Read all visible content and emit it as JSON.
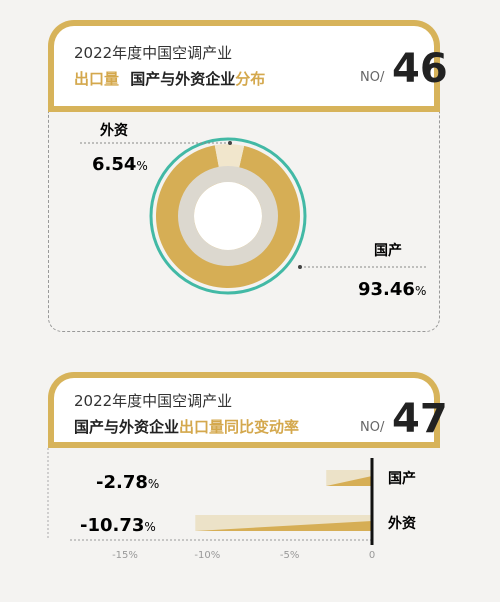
{
  "chart_data": [
    {
      "type": "pie",
      "number": "46",
      "no_label": "NO/",
      "title_line1": "2022年度中国空调产业",
      "title_line2": {
        "part1": "出口量",
        "part2": "国产与外资企业",
        "part3": "分布"
      },
      "categories": [
        "国产",
        "外资"
      ],
      "values": [
        93.46,
        6.54
      ],
      "value_labels": [
        "93.46",
        "6.54"
      ],
      "unit": "%",
      "colors": {
        "国产": "#d6ae55",
        "外资": "#f1e6cc",
        "ring": "#42b9a5",
        "inner": "#dcd8cf"
      }
    },
    {
      "type": "bar",
      "number": "47",
      "no_label": "NO/",
      "title_line1": "2022年度中国空调产业",
      "title_line2": {
        "part1": "国产与外资企业",
        "part2": "出口量同比变动率"
      },
      "categories": [
        "国产",
        "外资"
      ],
      "values": [
        -2.78,
        -10.73
      ],
      "value_labels": [
        "-2.78",
        "-10.73"
      ],
      "unit": "%",
      "xlim": [
        -15,
        0
      ],
      "xticks": [
        "-15%",
        "-10%",
        "-5%",
        "0"
      ],
      "colors": {
        "bar_dark": "#d6ae55",
        "bar_light": "#ece2c8",
        "axis": "#111"
      }
    }
  ]
}
